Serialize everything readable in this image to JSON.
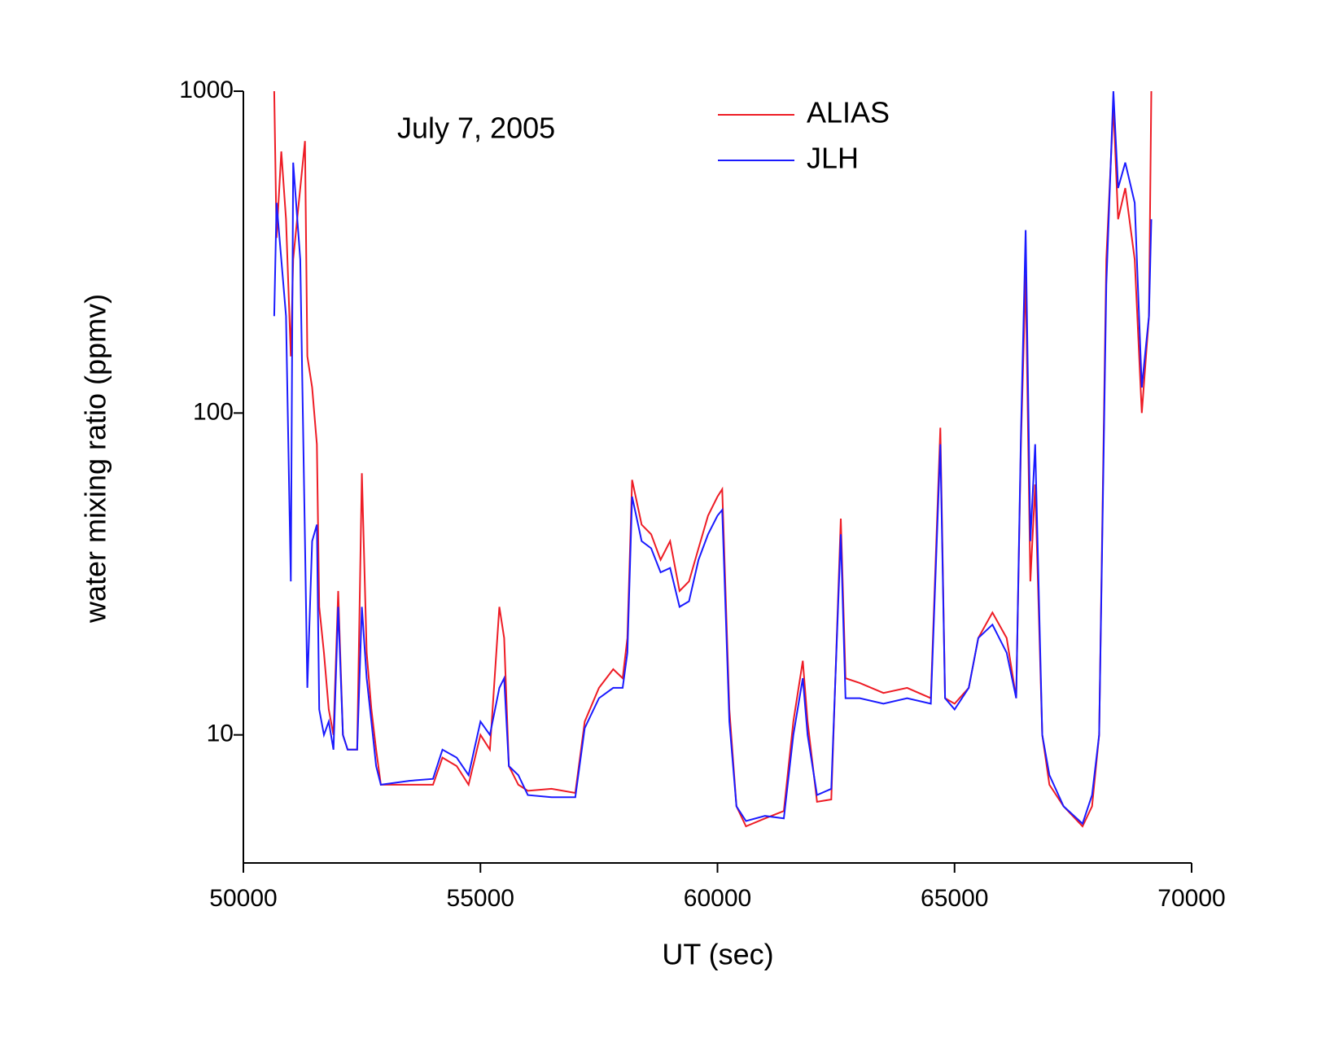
{
  "chart_data": {
    "type": "line",
    "annotation": "July 7, 2005",
    "xlabel": "UT (sec)",
    "ylabel": "water mixing ratio (ppmv)",
    "log_y": true,
    "legend": "top",
    "xlim": [
      50000,
      70000
    ],
    "xticks": [
      50000,
      55000,
      60000,
      65000,
      70000
    ],
    "ylim": [
      4,
      1000
    ],
    "yticks": [
      10,
      100,
      1000
    ],
    "x": [
      50650,
      50700,
      50800,
      50900,
      51000,
      51050,
      51200,
      51300,
      51350,
      51450,
      51550,
      51600,
      51700,
      51800,
      51900,
      52000,
      52100,
      52200,
      52400,
      52500,
      52600,
      52700,
      52800,
      52900,
      53500,
      54000,
      54200,
      54500,
      54750,
      55000,
      55200,
      55400,
      55500,
      55600,
      55800,
      56000,
      56500,
      57000,
      57200,
      57500,
      57800,
      58000,
      58100,
      58200,
      58400,
      58600,
      58800,
      59000,
      59200,
      59400,
      59600,
      59800,
      60000,
      60100,
      60250,
      60400,
      60600,
      61000,
      61400,
      61600,
      61800,
      61900,
      62100,
      62400,
      62600,
      62700,
      63000,
      63500,
      64000,
      64500,
      64700,
      64800,
      65000,
      65300,
      65500,
      65800,
      66100,
      66300,
      66400,
      66500,
      66600,
      66700,
      66850,
      67000,
      67300,
      67700,
      67900,
      68050,
      68200,
      68350,
      68450,
      68600,
      68800,
      68950,
      69100,
      69150
    ],
    "series": [
      {
        "name": "ALIAS",
        "color": "#ee1c25",
        "values": [
          1000,
          350,
          650,
          400,
          150,
          300,
          500,
          700,
          150,
          120,
          80,
          25,
          18,
          12,
          10,
          28,
          10,
          9,
          9,
          65,
          18,
          12,
          9,
          7,
          7,
          7,
          8.5,
          8,
          7,
          10,
          9,
          25,
          20,
          8,
          7,
          6.7,
          6.8,
          6.6,
          11,
          14,
          16,
          15,
          20,
          62,
          45,
          42,
          35,
          40,
          28,
          30,
          38,
          48,
          55,
          58,
          12,
          6,
          5.2,
          5.5,
          5.8,
          11,
          17,
          11,
          6.2,
          6.3,
          47,
          15,
          14.5,
          13.5,
          14,
          13,
          90,
          13,
          12.5,
          14,
          20,
          24,
          20,
          13,
          80,
          270,
          30,
          60,
          10,
          7,
          6,
          5.2,
          6,
          10,
          300,
          900,
          400,
          500,
          300,
          100,
          200,
          1000
        ]
      },
      {
        "name": "JLH",
        "color": "#1a1aff",
        "values": [
          200,
          450,
          300,
          200,
          30,
          600,
          300,
          40,
          14,
          40,
          45,
          12,
          10,
          11,
          9,
          25,
          10,
          9,
          9,
          25,
          15,
          11,
          8,
          7,
          7.2,
          7.3,
          9,
          8.5,
          7.5,
          11,
          10,
          14,
          15,
          8,
          7.5,
          6.5,
          6.4,
          6.4,
          10.5,
          13,
          14,
          14,
          18,
          55,
          40,
          38,
          32,
          33,
          25,
          26,
          35,
          42,
          48,
          50,
          11,
          6,
          5.4,
          5.6,
          5.5,
          10,
          15,
          10,
          6.5,
          6.8,
          42,
          13,
          13,
          12.5,
          13,
          12.5,
          80,
          13,
          12,
          14,
          20,
          22,
          18,
          13,
          85,
          370,
          40,
          80,
          10,
          7.5,
          6,
          5.3,
          6.5,
          10,
          250,
          1000,
          500,
          600,
          450,
          120,
          200,
          400
        ]
      }
    ]
  }
}
